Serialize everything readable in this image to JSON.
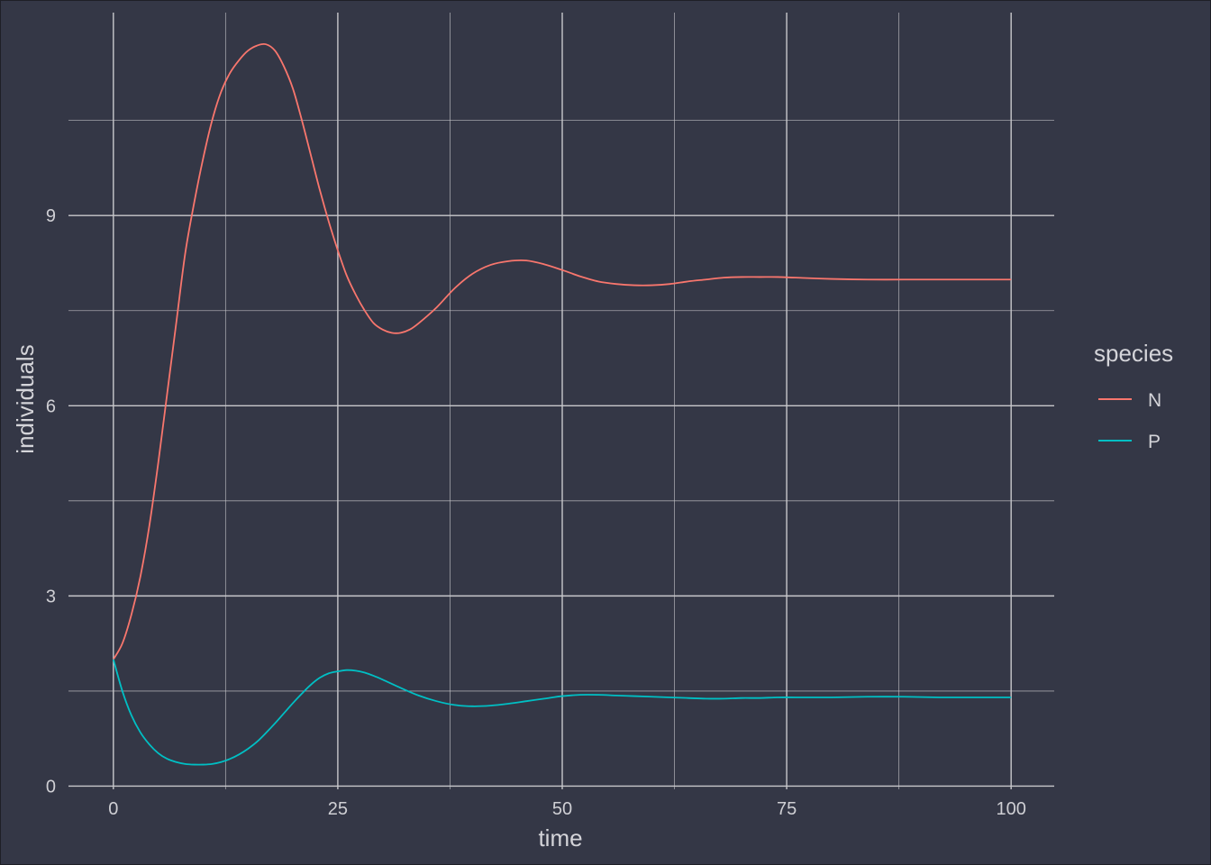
{
  "chart_data": {
    "type": "line",
    "xlabel": "time",
    "ylabel": "individuals",
    "xlim": [
      -5,
      104.8
    ],
    "ylim": [
      -0.05,
      12.2
    ],
    "xticks": [
      0,
      25,
      50,
      75,
      100
    ],
    "xtick_labels": [
      "0",
      "25",
      "50",
      "75",
      "100"
    ],
    "yticks": [
      0,
      3,
      6,
      9
    ],
    "ytick_labels": [
      "0",
      "3",
      "6",
      "9"
    ],
    "grid": true,
    "legend": {
      "title": "species",
      "position": "right"
    },
    "colors": {
      "background": "#343746",
      "grid": "#c8c8cc",
      "N": "#F8766D",
      "P": "#00BFC4"
    },
    "series": [
      {
        "name": "N",
        "x": [
          0,
          1,
          2,
          3,
          4,
          5,
          6,
          7,
          8,
          9,
          10,
          11,
          12,
          13,
          14,
          15,
          16,
          17,
          18,
          19,
          20,
          21,
          22,
          23,
          24,
          25,
          26,
          27,
          28,
          29,
          30,
          31,
          32,
          33,
          34,
          36,
          38,
          40,
          42,
          44,
          46,
          48,
          50,
          52,
          54,
          56,
          58,
          60,
          62,
          64,
          66,
          68,
          70,
          72,
          74,
          76,
          80,
          84,
          88,
          92,
          96,
          100
        ],
        "y": [
          2.0,
          2.25,
          2.7,
          3.3,
          4.1,
          5.1,
          6.2,
          7.3,
          8.4,
          9.2,
          9.9,
          10.5,
          10.95,
          11.25,
          11.45,
          11.6,
          11.68,
          11.7,
          11.6,
          11.35,
          11.0,
          10.5,
          9.95,
          9.4,
          8.9,
          8.45,
          8.05,
          7.75,
          7.5,
          7.3,
          7.2,
          7.15,
          7.15,
          7.2,
          7.3,
          7.55,
          7.85,
          8.08,
          8.22,
          8.28,
          8.29,
          8.23,
          8.14,
          8.04,
          7.96,
          7.92,
          7.9,
          7.9,
          7.92,
          7.96,
          7.99,
          8.02,
          8.03,
          8.03,
          8.03,
          8.02,
          8.0,
          7.99,
          7.99,
          7.99,
          7.99,
          7.99
        ]
      },
      {
        "name": "P",
        "x": [
          0,
          1,
          2,
          3,
          4,
          5,
          6,
          7,
          8,
          9,
          10,
          11,
          12,
          13,
          14,
          15,
          16,
          17,
          18,
          19,
          20,
          21,
          22,
          23,
          24,
          25,
          26,
          27,
          28,
          29,
          30,
          32,
          34,
          36,
          38,
          40,
          42,
          44,
          46,
          48,
          50,
          52,
          54,
          56,
          58,
          60,
          62,
          64,
          66,
          68,
          70,
          72,
          74,
          76,
          80,
          84,
          88,
          92,
          96,
          100
        ],
        "y": [
          2.0,
          1.5,
          1.12,
          0.85,
          0.66,
          0.52,
          0.43,
          0.38,
          0.35,
          0.34,
          0.34,
          0.35,
          0.38,
          0.43,
          0.5,
          0.59,
          0.7,
          0.84,
          0.99,
          1.15,
          1.31,
          1.46,
          1.6,
          1.71,
          1.78,
          1.81,
          1.83,
          1.82,
          1.79,
          1.74,
          1.68,
          1.55,
          1.43,
          1.34,
          1.28,
          1.26,
          1.27,
          1.3,
          1.34,
          1.38,
          1.42,
          1.44,
          1.44,
          1.43,
          1.42,
          1.41,
          1.4,
          1.39,
          1.38,
          1.38,
          1.39,
          1.39,
          1.4,
          1.4,
          1.4,
          1.41,
          1.41,
          1.4,
          1.4,
          1.4
        ]
      }
    ]
  }
}
